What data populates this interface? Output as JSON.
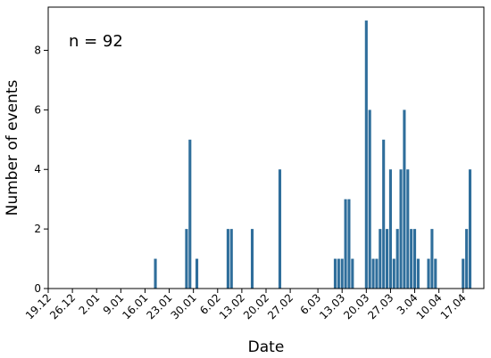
{
  "chart_data": {
    "type": "bar",
    "title": "",
    "xlabel": "Date",
    "ylabel": "Number of events",
    "annotation": "n = 92",
    "bar_color": "#2f6e9b",
    "x_start_date": "2019-12-19",
    "xlim_dates": [
      "2019-12-19",
      "2020-04-23"
    ],
    "ylim": [
      0,
      9.45
    ],
    "y_ticks": [
      0,
      2,
      4,
      6,
      8
    ],
    "x_ticks": [
      {
        "date": "2019-12-19",
        "label": "19.12"
      },
      {
        "date": "2019-12-26",
        "label": "26.12"
      },
      {
        "date": "2020-01-02",
        "label": "2.01"
      },
      {
        "date": "2020-01-09",
        "label": "9.01"
      },
      {
        "date": "2020-01-16",
        "label": "16.01"
      },
      {
        "date": "2020-01-23",
        "label": "23.01"
      },
      {
        "date": "2020-01-30",
        "label": "30.01"
      },
      {
        "date": "2020-02-06",
        "label": "6.02"
      },
      {
        "date": "2020-02-13",
        "label": "13.02"
      },
      {
        "date": "2020-02-20",
        "label": "20.02"
      },
      {
        "date": "2020-02-27",
        "label": "27.02"
      },
      {
        "date": "2020-03-06",
        "label": "6.03"
      },
      {
        "date": "2020-03-13",
        "label": "13.03"
      },
      {
        "date": "2020-03-20",
        "label": "20.03"
      },
      {
        "date": "2020-03-27",
        "label": "27.03"
      },
      {
        "date": "2020-04-03",
        "label": "3.04"
      },
      {
        "date": "2020-04-10",
        "label": "10.04"
      },
      {
        "date": "2020-04-17",
        "label": "17.04"
      }
    ],
    "points": [
      {
        "date": "2020-01-19",
        "value": 1
      },
      {
        "date": "2020-01-28",
        "value": 2
      },
      {
        "date": "2020-01-29",
        "value": 5
      },
      {
        "date": "2020-01-31",
        "value": 1
      },
      {
        "date": "2020-02-09",
        "value": 2
      },
      {
        "date": "2020-02-10",
        "value": 2
      },
      {
        "date": "2020-02-16",
        "value": 2
      },
      {
        "date": "2020-02-24",
        "value": 4
      },
      {
        "date": "2020-03-11",
        "value": 1
      },
      {
        "date": "2020-03-12",
        "value": 1
      },
      {
        "date": "2020-03-13",
        "value": 1
      },
      {
        "date": "2020-03-14",
        "value": 3
      },
      {
        "date": "2020-03-15",
        "value": 3
      },
      {
        "date": "2020-03-16",
        "value": 1
      },
      {
        "date": "2020-03-20",
        "value": 9
      },
      {
        "date": "2020-03-21",
        "value": 6
      },
      {
        "date": "2020-03-22",
        "value": 1
      },
      {
        "date": "2020-03-23",
        "value": 1
      },
      {
        "date": "2020-03-24",
        "value": 2
      },
      {
        "date": "2020-03-25",
        "value": 5
      },
      {
        "date": "2020-03-26",
        "value": 2
      },
      {
        "date": "2020-03-27",
        "value": 4
      },
      {
        "date": "2020-03-28",
        "value": 1
      },
      {
        "date": "2020-03-29",
        "value": 2
      },
      {
        "date": "2020-03-30",
        "value": 4
      },
      {
        "date": "2020-03-31",
        "value": 6
      },
      {
        "date": "2020-04-01",
        "value": 4
      },
      {
        "date": "2020-04-02",
        "value": 2
      },
      {
        "date": "2020-04-03",
        "value": 2
      },
      {
        "date": "2020-04-04",
        "value": 1
      },
      {
        "date": "2020-04-07",
        "value": 1
      },
      {
        "date": "2020-04-08",
        "value": 2
      },
      {
        "date": "2020-04-09",
        "value": 1
      },
      {
        "date": "2020-04-17",
        "value": 1
      },
      {
        "date": "2020-04-18",
        "value": 2
      },
      {
        "date": "2020-04-19",
        "value": 4
      }
    ]
  }
}
